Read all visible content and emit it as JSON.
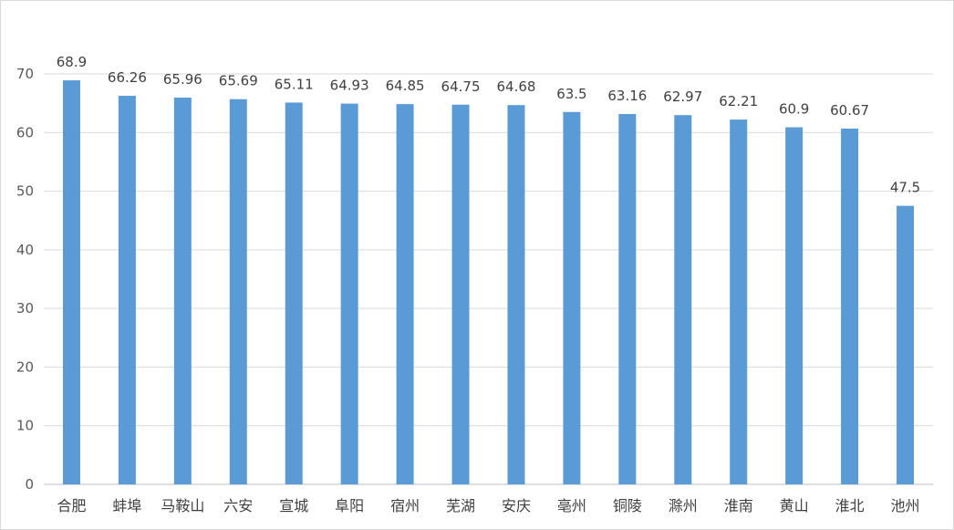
{
  "chart_data": {
    "type": "bar",
    "title": "",
    "xlabel": "",
    "ylabel": "",
    "categories": [
      "合肥",
      "蚌埠",
      "马鞍山",
      "六安",
      "宣城",
      "阜阳",
      "宿州",
      "芜湖",
      "安庆",
      "亳州",
      "铜陵",
      "滁州",
      "淮南",
      "黄山",
      "淮北",
      "池州"
    ],
    "values": [
      68.9,
      66.26,
      65.96,
      65.69,
      65.11,
      64.93,
      64.85,
      64.75,
      64.68,
      63.5,
      63.16,
      62.97,
      62.21,
      60.9,
      60.67,
      47.5
    ],
    "value_labels": [
      "68.9",
      "66.26",
      "65.96",
      "65.69",
      "65.11",
      "64.93",
      "64.85",
      "64.75",
      "64.68",
      "63.5",
      "63.16",
      "62.97",
      "62.21",
      "60.9",
      "60.67",
      "47.5"
    ],
    "ylim": [
      0,
      70
    ],
    "yticks": [
      "0",
      "10",
      "20",
      "30",
      "40",
      "50",
      "60",
      "70"
    ],
    "grid": true,
    "legend": "none",
    "bar_color": "#5b9bd5"
  }
}
